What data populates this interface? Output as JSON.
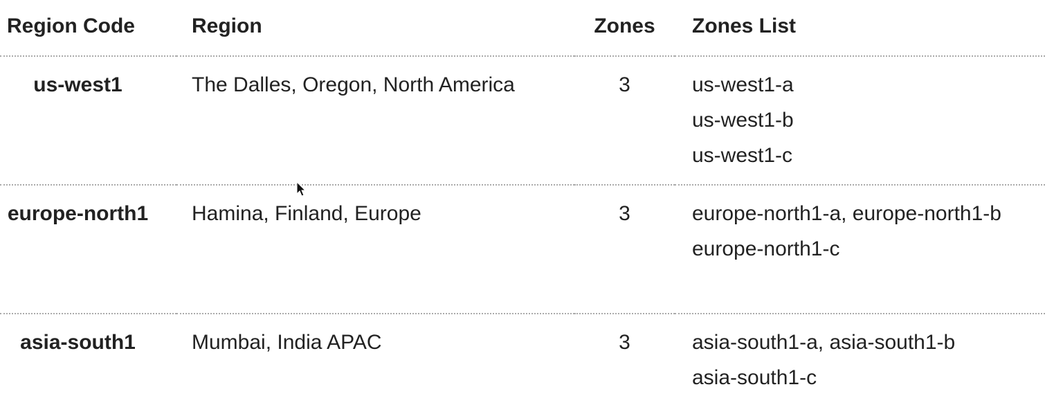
{
  "table": {
    "columns": [
      "Region Code",
      "Region",
      "Zones",
      "Zones List"
    ],
    "rows": [
      {
        "region_code": "us-west1",
        "region": "The Dalles, Oregon, North America",
        "zones": 3,
        "zones_list": [
          "us-west1-a",
          "us-west1-b",
          "us-west1-c"
        ]
      },
      {
        "region_code": "europe-north1",
        "region": "Hamina, Finland, Europe",
        "zones": 3,
        "zones_list": [
          "europe-north1-a, europe-north1-b",
          "europe-north1-c"
        ]
      },
      {
        "region_code": "asia-south1",
        "region": "Mumbai, India APAC",
        "zones": 3,
        "zones_list": [
          "asia-south1-a, asia-south1-b",
          "asia-south1-c"
        ]
      }
    ]
  }
}
